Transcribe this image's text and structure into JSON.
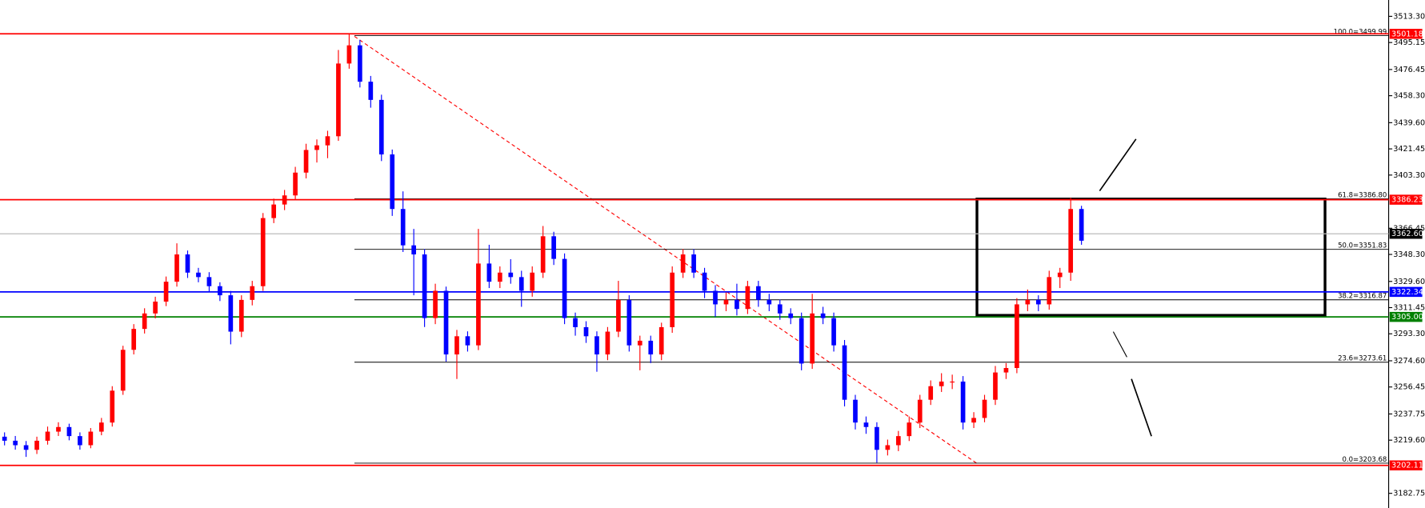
{
  "chart_data": {
    "type": "candlestick",
    "up_color": "#ff0000",
    "down_color": "#0000ff",
    "ylim": [
      3172.6,
      3524.6
    ],
    "yticks": [
      {
        "value": 3513.3,
        "label": "3513.30"
      },
      {
        "value": 3495.15,
        "label": "3495.15"
      },
      {
        "value": 3476.45,
        "label": "3476.45"
      },
      {
        "value": 3458.3,
        "label": "3458.30"
      },
      {
        "value": 3439.6,
        "label": "3439.60"
      },
      {
        "value": 3421.45,
        "label": "3421.45"
      },
      {
        "value": 3403.3,
        "label": "3403.30"
      },
      {
        "value": 3366.45,
        "label": "3366.45"
      },
      {
        "value": 3348.3,
        "label": "3348.30"
      },
      {
        "value": 3329.6,
        "label": "3329.60"
      },
      {
        "value": 3311.45,
        "label": "3311.45"
      },
      {
        "value": 3293.3,
        "label": "3293.30"
      },
      {
        "value": 3274.6,
        "label": "3274.60"
      },
      {
        "value": 3256.45,
        "label": "3256.45"
      },
      {
        "value": 3237.75,
        "label": "3237.75"
      },
      {
        "value": 3219.6,
        "label": "3219.60"
      },
      {
        "value": 3182.75,
        "label": "3182.75"
      }
    ],
    "levels": [
      {
        "value": 3501.18,
        "label": "3501.18",
        "color": "#ff0000"
      },
      {
        "value": 3386.23,
        "label": "3386.23",
        "color": "#ff0000"
      },
      {
        "value": 3362.6,
        "label": "3362.60",
        "color": "#000000"
      },
      {
        "value": 3322.34,
        "label": "3322.34",
        "color": "#0000ff"
      },
      {
        "value": 3305.0,
        "label": "3305.00",
        "color": "#008000"
      },
      {
        "value": 3202.11,
        "label": "3202.11",
        "color": "#ff0000"
      }
    ],
    "fibonacci": [
      {
        "value": 3499.99,
        "label": "100.0=3499.99"
      },
      {
        "value": 3386.8,
        "label": "61.8=3386.80"
      },
      {
        "value": 3351.83,
        "label": "50.0=3351.83"
      },
      {
        "value": 3316.87,
        "label": "38.2=3316.87"
      },
      {
        "value": 3273.61,
        "label": "23.6=3273.61"
      },
      {
        "value": 3203.68,
        "label": "0.0=3203.68"
      }
    ],
    "ohlc": [
      [
        3222.0,
        3225.0,
        3216.0,
        3219.2
      ],
      [
        3219.2,
        3222.5,
        3213.0,
        3216.1
      ],
      [
        3216.1,
        3219.0,
        3208.0,
        3212.9
      ],
      [
        3212.9,
        3222.0,
        3210.0,
        3219.2
      ],
      [
        3219.2,
        3229.0,
        3216.5,
        3225.5
      ],
      [
        3225.5,
        3232.0,
        3222.5,
        3228.7
      ],
      [
        3228.7,
        3231.0,
        3219.5,
        3222.4
      ],
      [
        3222.4,
        3225.0,
        3213.0,
        3216.1
      ],
      [
        3216.1,
        3228.0,
        3214.0,
        3225.5
      ],
      [
        3225.5,
        3235.0,
        3223.0,
        3231.8
      ],
      [
        3231.8,
        3257.0,
        3229.0,
        3253.9
      ],
      [
        3253.9,
        3285.0,
        3251.0,
        3282.2
      ],
      [
        3282.2,
        3300.0,
        3279.0,
        3296.7
      ],
      [
        3296.7,
        3311.0,
        3293.5,
        3307.4
      ],
      [
        3307.4,
        3319.0,
        3304.0,
        3315.6
      ],
      [
        3315.6,
        3333.0,
        3312.5,
        3329.4
      ],
      [
        3329.4,
        3356.0,
        3326.0,
        3348.3
      ],
      [
        3348.3,
        3351.0,
        3332.0,
        3335.7
      ],
      [
        3335.7,
        3339.0,
        3329.0,
        3332.6
      ],
      [
        3332.6,
        3336.0,
        3322.0,
        3326.3
      ],
      [
        3326.3,
        3329.0,
        3316.0,
        3320.0
      ],
      [
        3320.0,
        3323.0,
        3286.0,
        3294.8
      ],
      [
        3294.8,
        3320.0,
        3291.0,
        3316.8
      ],
      [
        3316.8,
        3330.0,
        3313.0,
        3326.3
      ],
      [
        3326.3,
        3377.0,
        3323.0,
        3373.5
      ],
      [
        3373.5,
        3387.0,
        3370.0,
        3382.9
      ],
      [
        3382.9,
        3393.0,
        3379.0,
        3389.2
      ],
      [
        3389.2,
        3409.0,
        3386.0,
        3405.0
      ],
      [
        3405.0,
        3425.0,
        3401.0,
        3420.7
      ],
      [
        3420.7,
        3428.0,
        3412.0,
        3423.9
      ],
      [
        3423.9,
        3434.0,
        3415.0,
        3430.2
      ],
      [
        3430.2,
        3490.0,
        3427.0,
        3480.6
      ],
      [
        3480.6,
        3501.0,
        3477.0,
        3493.2
      ],
      [
        3493.2,
        3497.0,
        3464.0,
        3468.0
      ],
      [
        3468.0,
        3472.0,
        3450.0,
        3455.4
      ],
      [
        3455.4,
        3459.0,
        3413.0,
        3417.6
      ],
      [
        3417.6,
        3421.0,
        3375.0,
        3379.8
      ],
      [
        3379.8,
        3392.0,
        3350.0,
        3354.6
      ],
      [
        3354.6,
        3366.0,
        3320.0,
        3348.3
      ],
      [
        3348.3,
        3352.0,
        3298.0,
        3304.2
      ],
      [
        3304.2,
        3328.0,
        3300.0,
        3323.1
      ],
      [
        3323.1,
        3326.0,
        3274.0,
        3279.0
      ],
      [
        3279.0,
        3296.0,
        3262.0,
        3291.6
      ],
      [
        3291.6,
        3295.0,
        3281.0,
        3285.3
      ],
      [
        3285.3,
        3366.0,
        3282.0,
        3342.0
      ],
      [
        3342.0,
        3355.0,
        3325.0,
        3329.4
      ],
      [
        3329.4,
        3340.0,
        3325.0,
        3335.7
      ],
      [
        3335.7,
        3345.0,
        3328.0,
        3332.6
      ],
      [
        3332.6,
        3337.0,
        3312.0,
        3323.1
      ],
      [
        3323.1,
        3340.0,
        3319.0,
        3335.7
      ],
      [
        3335.7,
        3368.0,
        3332.0,
        3360.9
      ],
      [
        3360.9,
        3364.0,
        3341.0,
        3345.2
      ],
      [
        3345.2,
        3349.0,
        3300.0,
        3304.2
      ],
      [
        3304.2,
        3308.0,
        3292.0,
        3297.9
      ],
      [
        3297.9,
        3302.0,
        3287.0,
        3291.6
      ],
      [
        3291.6,
        3295.0,
        3267.0,
        3279.0
      ],
      [
        3279.0,
        3298.0,
        3275.0,
        3294.8
      ],
      [
        3294.8,
        3330.0,
        3291.0,
        3316.8
      ],
      [
        3316.8,
        3320.0,
        3281.0,
        3285.3
      ],
      [
        3285.3,
        3292.0,
        3268.0,
        3288.5
      ],
      [
        3288.5,
        3292.0,
        3273.0,
        3279.0
      ],
      [
        3279.0,
        3301.0,
        3275.0,
        3297.9
      ],
      [
        3297.9,
        3340.0,
        3294.0,
        3335.7
      ],
      [
        3335.7,
        3352.0,
        3332.0,
        3348.3
      ],
      [
        3348.3,
        3352.0,
        3332.0,
        3335.7
      ],
      [
        3335.7,
        3339.0,
        3318.0,
        3323.1
      ],
      [
        3323.1,
        3327.0,
        3305.0,
        3313.7
      ],
      [
        3313.7,
        3322.0,
        3309.0,
        3316.8
      ],
      [
        3316.8,
        3328.0,
        3306.0,
        3310.5
      ],
      [
        3310.5,
        3330.0,
        3307.0,
        3326.3
      ],
      [
        3326.3,
        3330.0,
        3312.0,
        3316.8
      ],
      [
        3316.8,
        3321.0,
        3309.0,
        3313.7
      ],
      [
        3313.7,
        3317.0,
        3303.0,
        3307.4
      ],
      [
        3307.4,
        3311.0,
        3300.0,
        3304.2
      ],
      [
        3304.2,
        3308.0,
        3268.0,
        3272.7
      ],
      [
        3272.7,
        3321.0,
        3269.0,
        3307.4
      ],
      [
        3307.4,
        3312.0,
        3300.0,
        3304.2
      ],
      [
        3304.2,
        3308.0,
        3281.0,
        3285.3
      ],
      [
        3285.3,
        3289.0,
        3243.0,
        3247.6
      ],
      [
        3247.6,
        3251.0,
        3227.0,
        3231.8
      ],
      [
        3231.8,
        3236.0,
        3224.0,
        3228.7
      ],
      [
        3228.7,
        3232.0,
        3204.0,
        3212.9
      ],
      [
        3212.9,
        3220.0,
        3209.0,
        3216.1
      ],
      [
        3216.1,
        3226.0,
        3212.0,
        3222.4
      ],
      [
        3222.4,
        3236.0,
        3219.0,
        3231.8
      ],
      [
        3231.8,
        3251.0,
        3228.0,
        3247.6
      ],
      [
        3247.6,
        3261.0,
        3244.0,
        3257.0
      ],
      [
        3257.0,
        3266.0,
        3253.0,
        3260.2
      ],
      [
        3260.2,
        3265.0,
        3255.0,
        3260.2
      ],
      [
        3260.2,
        3264.0,
        3227.0,
        3231.8
      ],
      [
        3231.8,
        3239.0,
        3228.0,
        3235.0
      ],
      [
        3235.0,
        3251.0,
        3232.0,
        3247.6
      ],
      [
        3247.6,
        3271.0,
        3244.0,
        3266.5
      ],
      [
        3266.5,
        3273.0,
        3262.0,
        3269.6
      ],
      [
        3269.6,
        3318.0,
        3266.0,
        3313.7
      ],
      [
        3313.7,
        3324.0,
        3309.0,
        3316.8
      ],
      [
        3316.8,
        3320.0,
        3309.0,
        3313.7
      ],
      [
        3313.7,
        3337.0,
        3310.0,
        3332.6
      ],
      [
        3332.6,
        3339.0,
        3325.0,
        3335.7
      ],
      [
        3335.7,
        3387.5,
        3330.0,
        3379.8
      ],
      [
        3379.8,
        3382.0,
        3355.0,
        3357.8
      ]
    ]
  }
}
